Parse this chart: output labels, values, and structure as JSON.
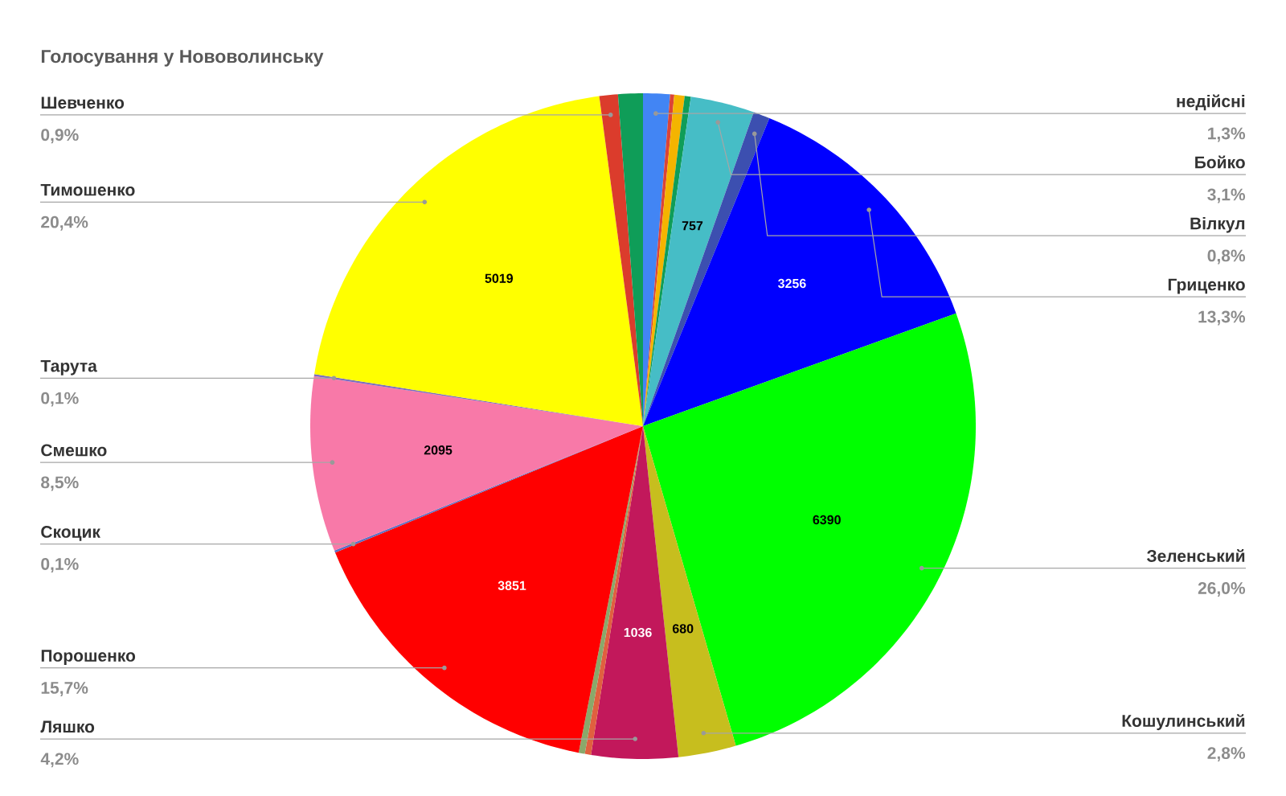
{
  "chart_data": {
    "type": "pie",
    "title": "Голосування у Нововолинську",
    "categories": [
      "недійсні",
      null,
      null,
      null,
      "Бойко",
      "Вілкул",
      "Гриценко",
      "Зеленський",
      "Кошулинський",
      "Ляшко",
      null,
      null,
      "Порошенко",
      "Скоцик",
      "Смешко",
      "Тарута",
      "Тимошенко",
      "Шевченко",
      null
    ],
    "values": [
      1.3,
      0.2,
      0.5,
      0.3,
      3.1,
      0.8,
      13.3,
      26.0,
      2.8,
      4.2,
      0.3,
      0.3,
      15.7,
      0.1,
      8.5,
      0.1,
      20.4,
      0.9,
      1.2
    ],
    "colors": [
      "#4285f4",
      "#db4437",
      "#f4b400",
      "#0f9d58",
      "#46bdc6",
      "#3c4fb0",
      "#0000ff",
      "#00ff00",
      "#c7be1e",
      "#c2185b",
      "#e0603f",
      "#8aa86a",
      "#ff0000",
      "#5b6fc4",
      "#f879a8",
      "#7c6fbf",
      "#ffff00",
      "#db3c2c",
      "#0f9d58"
    ],
    "value_labels": [
      "1,3%",
      null,
      null,
      null,
      "3,1%",
      "0,8%",
      "13,3%",
      "26,0%",
      "2,8%",
      "4,2%",
      null,
      null,
      "15,7%",
      "0,1%",
      "8,5%",
      "0,1%",
      "20,4%",
      "0,9%",
      null
    ],
    "annotations": [
      {
        "text": "757",
        "x": "Бойко"
      },
      {
        "text": "3256",
        "x": "Гриценко"
      },
      {
        "text": "6390",
        "x": "Зеленський"
      },
      {
        "text": "680",
        "x": "Кошулинський"
      },
      {
        "text": "1036",
        "x": "Ляшко"
      },
      {
        "text": "3851",
        "x": "Порошенко"
      },
      {
        "text": "2095",
        "x": "Смешко"
      },
      {
        "text": "5019",
        "x": "Тимошенко"
      }
    ]
  }
}
